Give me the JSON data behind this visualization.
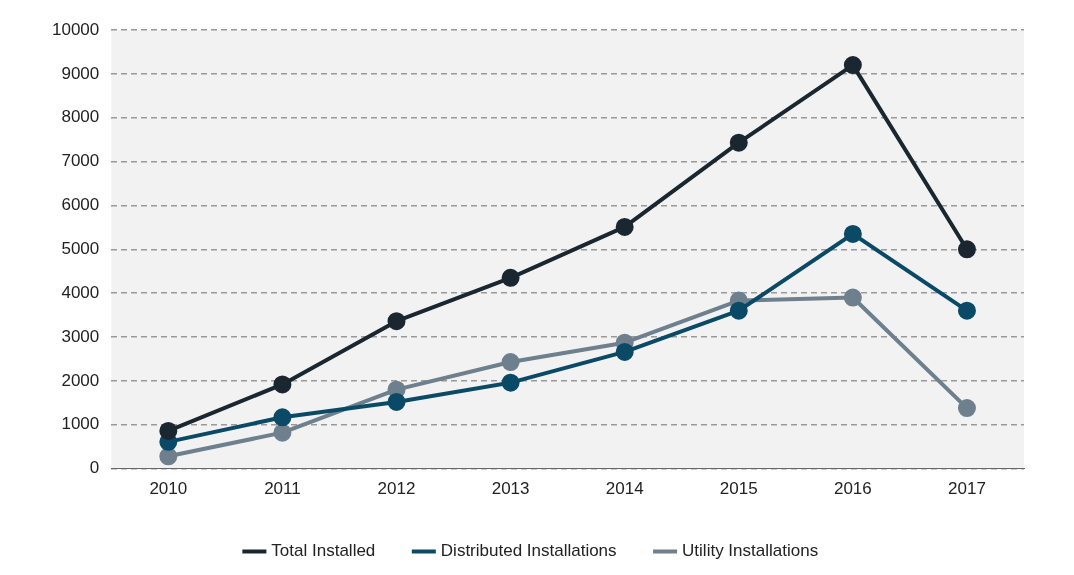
{
  "chart_data": {
    "type": "line",
    "categories": [
      "2010",
      "2011",
      "2012",
      "2013",
      "2014",
      "2015",
      "2016",
      "2017"
    ],
    "series": [
      {
        "name": "Total Installed",
        "color": "#1a2630",
        "values": [
          860,
          1920,
          3360,
          4350,
          5510,
          7430,
          9200,
          5000
        ]
      },
      {
        "name": "Distributed Installations",
        "color": "#0b4a66",
        "values": [
          610,
          1170,
          1520,
          1960,
          2660,
          3600,
          5350,
          3600
        ]
      },
      {
        "name": "Utility Installations",
        "color": "#6e7f8d",
        "values": [
          280,
          820,
          1800,
          2430,
          2870,
          3830,
          3900,
          1380
        ]
      }
    ],
    "ylim": [
      0,
      10000
    ],
    "yticks": [
      0,
      1000,
      2000,
      3000,
      4000,
      5000,
      6000,
      7000,
      8000,
      9000,
      10000
    ],
    "grid": "y",
    "legend": "bottom",
    "marker": "circle",
    "line_style": "solid"
  }
}
